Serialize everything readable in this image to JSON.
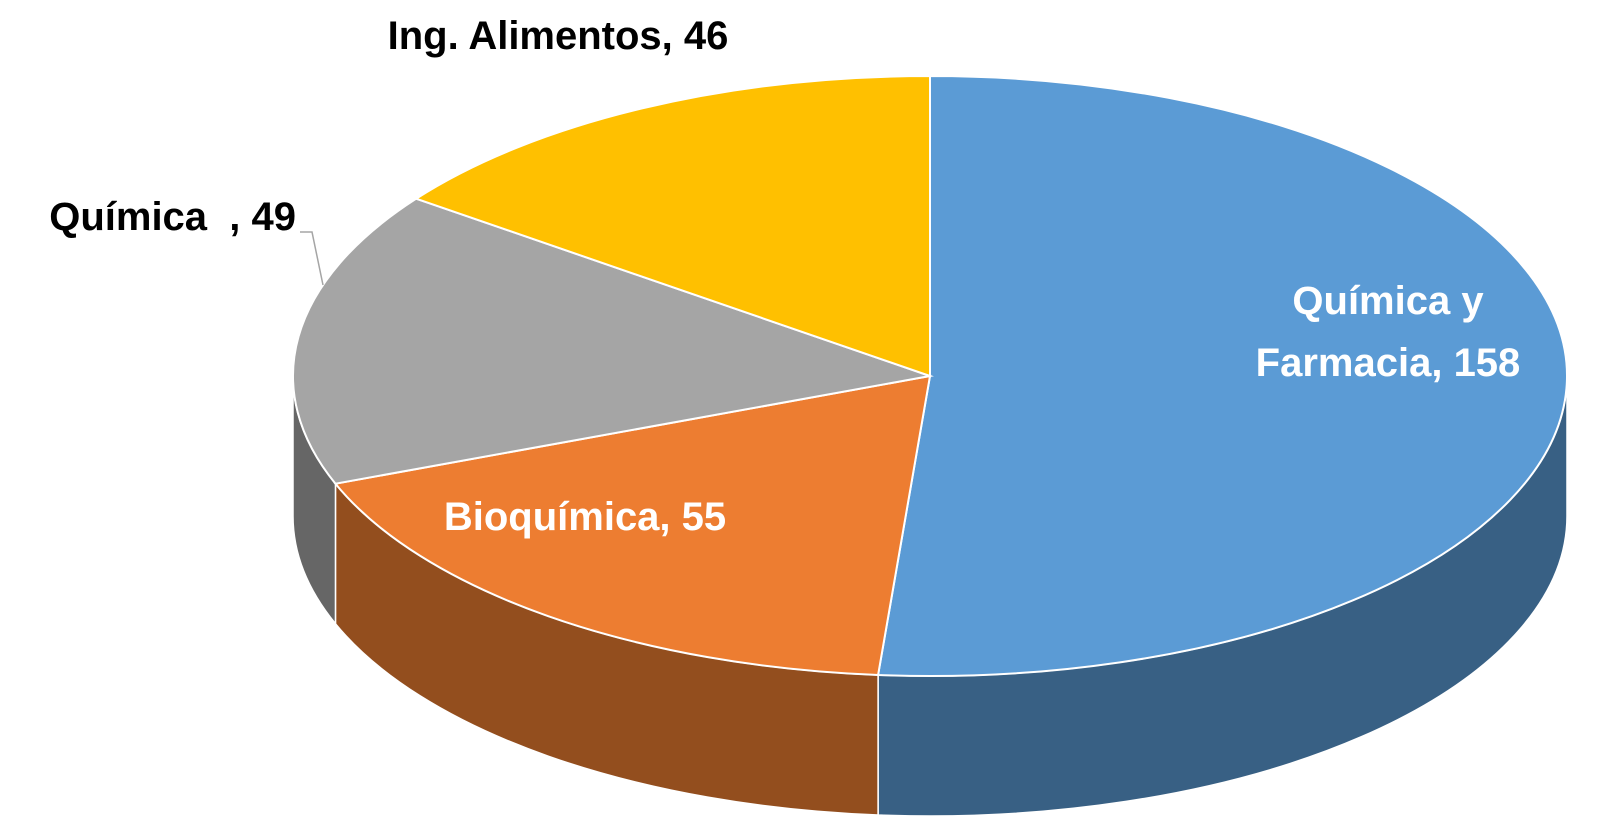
{
  "chart_data": {
    "type": "pie",
    "values": [
      158,
      55,
      49,
      46
    ],
    "value_labels": [
      "Química y Farmacia, 158",
      "Bioquímica, 55",
      "Química  , 49",
      "Ing. Alimentos, 46"
    ],
    "colors": [
      "#5b9bd5",
      "#ed7d31",
      "#a5a5a5",
      "#ffc000"
    ],
    "start_angle": 90,
    "direction": "clockwise",
    "three_d": true
  }
}
